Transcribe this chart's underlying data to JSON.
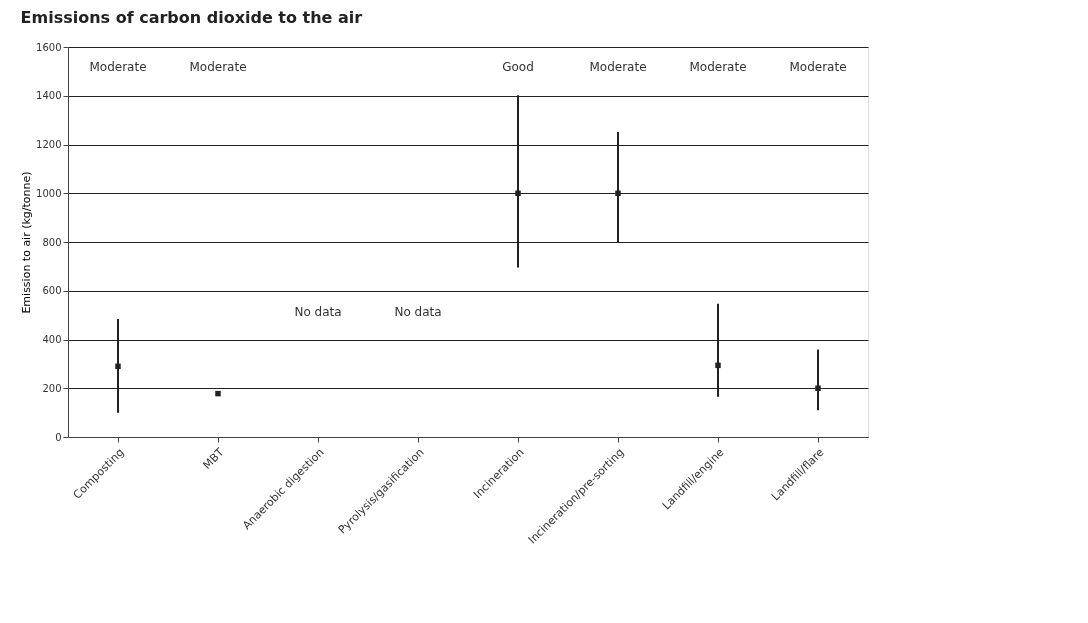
{
  "chart_data": {
    "type": "scatter",
    "title": "Emissions of carbon dioxide to the air",
    "ylabel": "Emission to air (kg/tonne)",
    "categories": [
      "Composting",
      "MBT",
      "Anaerobic digestion",
      "Pyrolysis/gasification",
      "Incineration",
      "Incineration/pre-sorting",
      "Landfill/engine",
      "Landfill/flare"
    ],
    "series": [
      {
        "color": "#222222",
        "values": [
          290,
          178,
          null,
          null,
          1000,
          1000,
          294,
          200
        ],
        "errors": [
          [
            99,
            484
          ],
          null,
          null,
          null,
          [
            695,
            1402
          ],
          [
            798,
            1251
          ],
          [
            165,
            547
          ],
          [
            110,
            359
          ]
        ]
      }
    ],
    "ylim": [
      0,
      1600
    ],
    "yticks": [
      0,
      200,
      400,
      600,
      800,
      1000,
      1200,
      1400,
      1600
    ],
    "grid": "y",
    "marker": "square",
    "annotations": [
      "Moderate",
      "Moderate",
      "No data",
      "No data",
      "Good",
      "Moderate",
      "Moderate",
      "Moderate"
    ]
  }
}
